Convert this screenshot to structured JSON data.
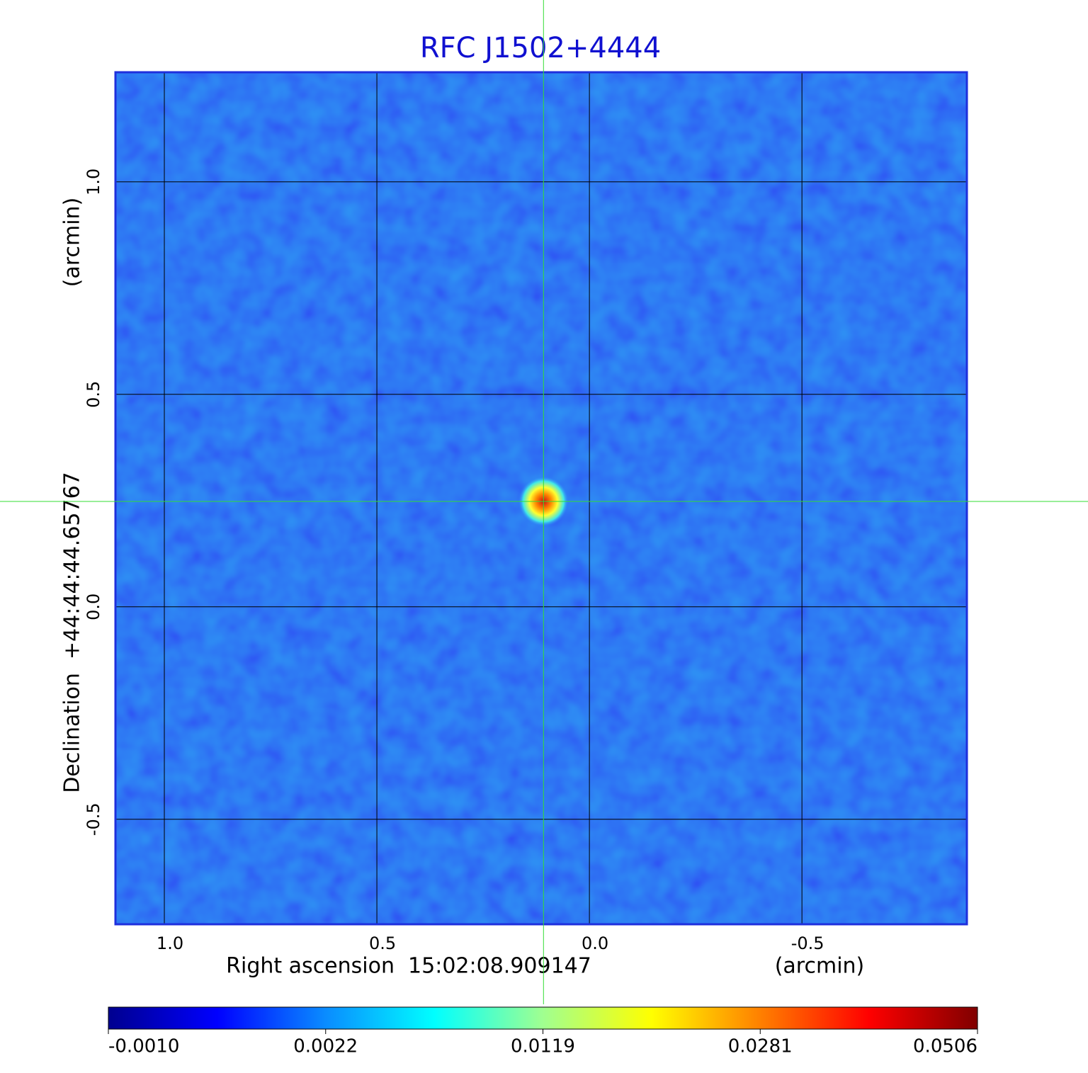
{
  "chart_data": {
    "type": "image",
    "title": "RFC J1502+4444",
    "xlabel": "Right ascension  15:02:08.909147",
    "xunit": "(arcmin)",
    "ylabel": "Declination  +44:44:44.65767",
    "yunit": "(arcmin)",
    "xlim": [
      1.115,
      -0.888
    ],
    "ylim": [
      -0.747,
      1.258
    ],
    "xticks": [
      {
        "value": 1,
        "label": "1.0"
      },
      0.5,
      {
        "value": 0,
        "label": "0.0"
      },
      -0.5
    ],
    "yticks": [
      -0.5,
      {
        "value": 0,
        "label": "0.0"
      },
      0.5,
      {
        "value": 1,
        "label": "1.0"
      }
    ],
    "grid": true,
    "crosshair": {
      "x": 0.108,
      "y": 0.248,
      "color": "#33dd33"
    },
    "colorbar": {
      "colors": [
        "#00008f",
        "#0000ff",
        "#0a8cff",
        "#00ffff",
        "#a0ff90",
        "#ffff00",
        "#ff8000",
        "#ff0000",
        "#800000"
      ],
      "ticks": [
        {
          "value": -0.001,
          "label": "-0.0010"
        },
        {
          "value": 0.0022,
          "label": "0.0022"
        },
        {
          "value": 0.0119,
          "label": "0.0119"
        },
        {
          "value": 0.0281,
          "label": "0.0281"
        },
        {
          "value": 0.0506,
          "label": "0.0506"
        }
      ]
    }
  }
}
